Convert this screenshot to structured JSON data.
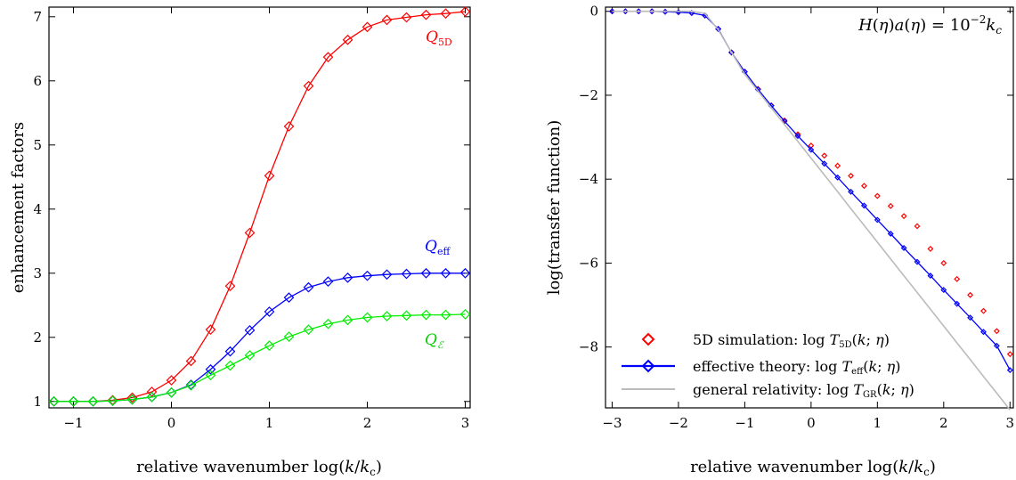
{
  "chart_data": [
    {
      "type": "line",
      "xlabel": "relative wavenumber log(k/k_c)",
      "ylabel": "enhancement factors",
      "xlim": [
        -1.25,
        3.05
      ],
      "ylim": [
        0.9,
        7.15
      ],
      "xticks": [
        "−1",
        "0",
        "1",
        "2",
        "3"
      ],
      "xtick_values": [
        -1,
        0,
        1,
        2,
        3
      ],
      "yticks": [
        "1",
        "2",
        "3",
        "4",
        "5",
        "6",
        "7"
      ],
      "ytick_values": [
        1,
        2,
        3,
        4,
        5,
        6,
        7
      ],
      "marker": "diamond",
      "x": [
        -1.2,
        -1.0,
        -0.8,
        -0.6,
        -0.4,
        -0.2,
        0.0,
        0.2,
        0.4,
        0.6,
        0.8,
        1.0,
        1.2,
        1.4,
        1.6,
        1.8,
        2.0,
        2.2,
        2.4,
        2.6,
        2.8,
        3.0
      ],
      "series": [
        {
          "name": "Q_5D",
          "label_main": "Q",
          "label_sub": "5D",
          "color": "#ff0000",
          "values": [
            1.0,
            1.0,
            1.0,
            1.02,
            1.06,
            1.15,
            1.33,
            1.63,
            2.12,
            2.8,
            3.63,
            4.52,
            5.29,
            5.92,
            6.37,
            6.64,
            6.84,
            6.95,
            6.99,
            7.03,
            7.05,
            7.08
          ]
        },
        {
          "name": "Q_eff",
          "label_main": "Q",
          "label_sub": "eff",
          "color": "#0000ff",
          "values": [
            1.0,
            1.0,
            1.0,
            1.01,
            1.03,
            1.07,
            1.14,
            1.26,
            1.5,
            1.78,
            2.11,
            2.4,
            2.62,
            2.78,
            2.87,
            2.93,
            2.96,
            2.98,
            2.99,
            3.0,
            3.0,
            3.0
          ]
        },
        {
          "name": "Q_E",
          "label_main": "Q",
          "label_sub": "ℰ",
          "color": "#00ee00",
          "values": [
            1.0,
            1.0,
            1.0,
            1.01,
            1.03,
            1.07,
            1.14,
            1.25,
            1.41,
            1.56,
            1.72,
            1.87,
            2.01,
            2.12,
            2.21,
            2.27,
            2.31,
            2.33,
            2.34,
            2.35,
            2.35,
            2.36
          ]
        }
      ]
    },
    {
      "type": "line",
      "xlabel": "relative wavenumber log(k/k_c)",
      "ylabel": "log(transfer function)",
      "xlim": [
        -3.1,
        3.05
      ],
      "ylim": [
        -9.45,
        0.1
      ],
      "xticks": [
        "−3",
        "−2",
        "−1",
        "0",
        "1",
        "2",
        "3"
      ],
      "xtick_values": [
        -3,
        -2,
        -1,
        0,
        1,
        2,
        3
      ],
      "yticks": [
        "0",
        "−2",
        "−4",
        "−6",
        "−8"
      ],
      "ytick_values": [
        0,
        -2,
        -4,
        -6,
        -8
      ],
      "annotation": "H(η)a(η) = 10⁻²k_c",
      "x": [
        -3.0,
        -2.8,
        -2.6,
        -2.4,
        -2.2,
        -2.0,
        -1.8,
        -1.6,
        -1.4,
        -1.2,
        -1.0,
        -0.8,
        -0.6,
        -0.4,
        -0.2,
        0.0,
        0.2,
        0.4,
        0.6,
        0.8,
        1.0,
        1.2,
        1.4,
        1.6,
        1.8,
        2.0,
        2.2,
        2.4,
        2.6,
        2.8,
        3.0
      ],
      "series": [
        {
          "name": "5D simulation",
          "legend_text": "5D simulation: log T_5D(k;η)",
          "color": "#ff0000",
          "style": "markers",
          "values": [
            0.0,
            0.0,
            0.0,
            0.0,
            -0.01,
            -0.02,
            -0.04,
            -0.1,
            -0.42,
            -0.98,
            -1.44,
            -1.85,
            -2.24,
            -2.6,
            -2.93,
            -3.2,
            -3.44,
            -3.68,
            -3.92,
            -4.16,
            -4.4,
            -4.64,
            -4.88,
            -5.12,
            -5.66,
            -6.0,
            -6.38,
            -6.76,
            -7.14,
            -7.62,
            -8.17
          ]
        },
        {
          "name": "effective theory",
          "legend_text": "effective theory: log T_eff(k;η)",
          "color": "#0000ff",
          "style": "line+markers",
          "values": [
            0.0,
            0.0,
            0.0,
            0.0,
            -0.01,
            -0.02,
            -0.04,
            -0.1,
            -0.42,
            -0.98,
            -1.44,
            -1.86,
            -2.25,
            -2.62,
            -2.97,
            -3.3,
            -3.63,
            -3.96,
            -4.3,
            -4.63,
            -4.97,
            -5.3,
            -5.64,
            -5.97,
            -6.3,
            -6.64,
            -6.97,
            -7.3,
            -7.64,
            -7.97,
            -8.55
          ]
        },
        {
          "name": "general relativity",
          "legend_text": "general relativity: log T_GR(k;η)",
          "color": "#bbbbbb",
          "style": "line",
          "values": [
            0.0,
            0.0,
            0.0,
            0.0,
            0.0,
            0.0,
            0.0,
            -0.05,
            -0.44,
            -0.98,
            -1.5,
            -1.9,
            -2.3,
            -2.7,
            -3.1,
            -3.5,
            -3.9,
            -4.3,
            -4.7,
            -5.1,
            -5.5,
            -5.9,
            -6.3,
            -6.7,
            -7.1,
            -7.5,
            -7.9,
            -8.3,
            -8.7,
            -9.1,
            -9.5
          ]
        }
      ]
    }
  ]
}
